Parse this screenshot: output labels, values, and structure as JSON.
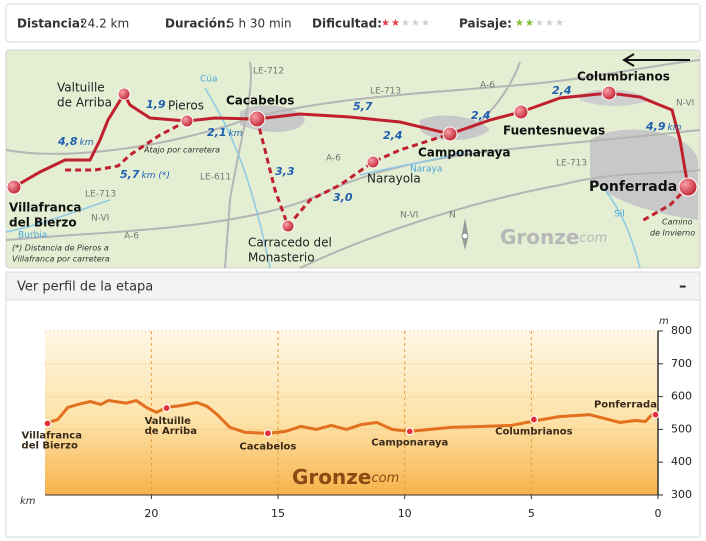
{
  "stats": [
    {
      "label": "Distancia:",
      "value": "24.2 km"
    },
    {
      "label": "Duración:",
      "value": "5 h 30 min"
    },
    {
      "label": "Dificultad:",
      "value": 2,
      "max": 5,
      "color": "#e8404a"
    },
    {
      "label": "Paisaje:",
      "value": 2,
      "max": 5,
      "color": "#7cc030"
    }
  ],
  "map": {
    "places": [
      [
        "Villafranca",
        "del Bierzo"
      ],
      [
        "Valtuille",
        "de Arriba"
      ],
      [
        "Pieros"
      ],
      [
        "Cacabelos"
      ],
      [
        "Carracedo del",
        "Monasterio"
      ],
      [
        "Narayola"
      ],
      [
        "Camponaraya"
      ],
      [
        "Fuentesnuevas"
      ],
      [
        "Columbrianos"
      ],
      [
        "Ponferrada"
      ]
    ],
    "distances": [
      {
        "value": "4,8",
        "unit": "km"
      },
      {
        "value": "1,9"
      },
      {
        "value": "2,1",
        "unit": "km"
      },
      {
        "value": "5,7",
        "unit": "km (*)"
      },
      {
        "value": "3,3"
      },
      {
        "value": "5,7"
      },
      {
        "value": "2,4"
      },
      {
        "value": "3,0"
      },
      {
        "value": "2,4"
      },
      {
        "value": "2,4"
      },
      {
        "value": "4,9",
        "unit": "km"
      }
    ],
    "roads": [
      "LE-712",
      "LE-713",
      "A-6",
      "N-VI",
      "LE-713",
      "N-VI",
      "A-6",
      "A-6",
      "LE-611",
      "N-VI",
      "LE-713"
    ],
    "rivers": [
      "Cúa",
      "Burbia",
      "Naraya",
      "Sil"
    ],
    "notes": {
      "shortcut": "Atajo por carretera",
      "winter": [
        "Camino",
        "de Invierno"
      ],
      "footnote": [
        "(*) Distancia de Pieros a",
        "Villafranca por carretera"
      ],
      "compass": "N",
      "brand": "Gronze",
      "brand_suffix": "com"
    }
  },
  "panel": {
    "title": "Ver perfil de la etapa",
    "toggle": "–"
  },
  "chart_data": {
    "type": "line",
    "color": "#e2701e",
    "x": [
      24.2,
      23.7,
      23.3,
      22.9,
      22.4,
      22.0,
      21.7,
      21.0,
      20.6,
      20.2,
      19.8,
      19.4,
      18.8,
      18.2,
      17.8,
      17.4,
      16.9,
      16.3,
      15.4,
      14.7,
      14.1,
      13.5,
      12.9,
      12.3,
      11.7,
      11.1,
      10.5,
      9.8,
      9.0,
      8.2,
      7.0,
      5.8,
      4.8,
      3.9,
      2.7,
      2.1,
      1.5,
      0.9,
      0.5,
      0.2,
      0.0
    ],
    "values": [
      518,
      530,
      567,
      576,
      585,
      576,
      588,
      580,
      588,
      567,
      552,
      567,
      573,
      582,
      570,
      545,
      506,
      491,
      488,
      494,
      509,
      500,
      512,
      500,
      515,
      521,
      500,
      494,
      500,
      506,
      509,
      512,
      527,
      539,
      545,
      533,
      521,
      527,
      524,
      548,
      548
    ],
    "waypoints": {
      "names": [
        [
          "Villafranca",
          "del Bierzo"
        ],
        [
          "Valtuille",
          "de Arriba"
        ],
        [
          "Cacabelos"
        ],
        [
          "Camponaraya"
        ],
        [
          "Columbrianos"
        ],
        [
          "Ponferrada"
        ]
      ],
      "x": [
        24.1,
        19.4,
        15.4,
        9.8,
        4.9,
        0.1
      ],
      "values": [
        518,
        565,
        488,
        494,
        530,
        545
      ]
    },
    "xlim": [
      24.2,
      0
    ],
    "xticks": [
      20,
      15,
      10,
      5,
      0
    ],
    "xlabel": "km",
    "ylim": [
      300,
      800
    ],
    "yticks": [
      300,
      400,
      500,
      600,
      700,
      800
    ],
    "ylabel": "m",
    "grid": true,
    "watermark": "Gronze",
    "watermark_suffix": "com"
  }
}
